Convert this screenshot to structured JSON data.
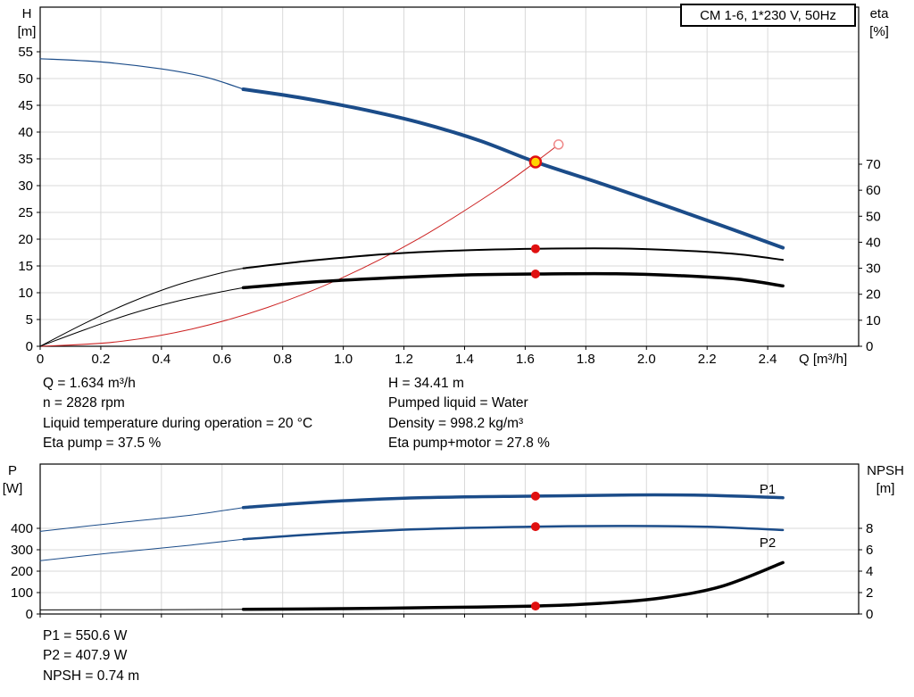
{
  "title_box": "CM 1-6, 1*230 V, 50Hz",
  "operating_point": {
    "left": [
      "Q = 1.634 m³/h",
      "n = 2828 rpm",
      "Liquid temperature during operation = 20 °C",
      "Eta pump = 37.5 %"
    ],
    "right": [
      "H = 34.41 m",
      "Pumped liquid = Water",
      "Density = 998.2 kg/m³",
      "Eta pump+motor = 27.8 %"
    ]
  },
  "power_results": [
    "P1 = 550.6 W",
    "P2 = 407.9 W",
    "NPSH = 0.74 m"
  ],
  "colors": {
    "curve_blue": "#1b4c89",
    "curve_red": "#cc2222",
    "marker_red": "#e01010",
    "duty_yellow": "#ffd400",
    "open_ring_red": "#ef8a8a",
    "black": "#000000",
    "grid": "#d9d9d9"
  },
  "chart_data": [
    {
      "type": "line",
      "name": "hq-eta-chart",
      "title": "CM 1-6, 1*230 V, 50Hz",
      "x_axis": {
        "label": "Q [m³/h]",
        "min": 0,
        "max": 2.7,
        "tick_values": [
          0,
          0.2,
          0.4,
          0.6,
          0.8,
          1.0,
          1.2,
          1.4,
          1.6,
          1.8,
          2.0,
          2.2,
          2.4
        ],
        "tick_labels": [
          "0",
          "0.2",
          "0.4",
          "0.6",
          "0.8",
          "1.0",
          "1.2",
          "1.4",
          "1.6",
          "1.8",
          "2.0",
          "2.2",
          "2.4"
        ]
      },
      "y_left": {
        "title_lines": [
          "H",
          "[m]"
        ],
        "min": 0,
        "max": 63,
        "tick_values": [
          0,
          5,
          10,
          15,
          20,
          25,
          30,
          35,
          40,
          45,
          50,
          55
        ],
        "tick_labels": [
          "0",
          "5",
          "10",
          "15",
          "20",
          "25",
          "30",
          "35",
          "40",
          "45",
          "50",
          "55"
        ]
      },
      "y_right": {
        "title_lines": [
          "eta",
          "[%]"
        ],
        "min": 0,
        "max": 70,
        "tick_values": [
          0,
          10,
          20,
          30,
          40,
          50,
          60,
          70
        ],
        "tick_labels": [
          "0",
          "10",
          "20",
          "30",
          "40",
          "50",
          "60",
          "70"
        ]
      },
      "series": [
        {
          "id": "hq-lead",
          "name": "H-Q curve (lead-in)",
          "axis": "left",
          "color": "#1b4c89",
          "width": 1.2,
          "points": [
            [
              0,
              53.7
            ],
            [
              0.2,
              53.1
            ],
            [
              0.4,
              51.8
            ],
            [
              0.55,
              50.2
            ],
            [
              0.67,
              48.0
            ]
          ]
        },
        {
          "id": "hq",
          "name": "H-Q curve",
          "axis": "left",
          "color": "#1b4c89",
          "width": 4,
          "points": [
            [
              0.67,
              48.0
            ],
            [
              0.85,
              46.5
            ],
            [
              1.05,
              44.4
            ],
            [
              1.25,
              41.8
            ],
            [
              1.45,
              38.4
            ],
            [
              1.634,
              34.41
            ],
            [
              1.85,
              30.4
            ],
            [
              2.05,
              26.5
            ],
            [
              2.25,
              22.5
            ],
            [
              2.45,
              18.4
            ]
          ]
        },
        {
          "id": "system",
          "name": "System curve",
          "axis": "left",
          "color": "#cc2222",
          "width": 1,
          "points": [
            [
              0,
              0
            ],
            [
              0.25,
              0.81
            ],
            [
              0.5,
              3.22
            ],
            [
              0.75,
              7.25
            ],
            [
              1.0,
              12.89
            ],
            [
              1.25,
              20.14
            ],
            [
              1.5,
              29.0
            ],
            [
              1.634,
              34.41
            ],
            [
              1.71,
              37.68
            ]
          ]
        },
        {
          "id": "eta-pump-lead",
          "name": "Eta pump (lead-in)",
          "axis": "right",
          "color": "#000000",
          "width": 1,
          "points": [
            [
              0,
              0
            ],
            [
              0.15,
              9
            ],
            [
              0.3,
              17
            ],
            [
              0.45,
              23.5
            ],
            [
              0.6,
              28.3
            ],
            [
              0.67,
              30
            ]
          ]
        },
        {
          "id": "eta-pump",
          "name": "Eta pump",
          "axis": "right",
          "color": "#000000",
          "width": 2,
          "points": [
            [
              0.67,
              30
            ],
            [
              0.9,
              33
            ],
            [
              1.15,
              35.5
            ],
            [
              1.4,
              36.9
            ],
            [
              1.634,
              37.5
            ],
            [
              1.9,
              37.6
            ],
            [
              2.1,
              36.9
            ],
            [
              2.3,
              35.4
            ],
            [
              2.45,
              33.2
            ]
          ]
        },
        {
          "id": "eta-motor-lead",
          "name": "Eta pump+motor (lead-in)",
          "axis": "right",
          "color": "#000000",
          "width": 1,
          "points": [
            [
              0,
              0
            ],
            [
              0.15,
              6.5
            ],
            [
              0.3,
              12.5
            ],
            [
              0.45,
              17.3
            ],
            [
              0.6,
              21
            ],
            [
              0.67,
              22.5
            ]
          ]
        },
        {
          "id": "eta-pump-motor",
          "name": "Eta pump+motor",
          "axis": "right",
          "color": "#000000",
          "width": 3.5,
          "points": [
            [
              0.67,
              22.5
            ],
            [
              0.9,
              24.7
            ],
            [
              1.15,
              26.3
            ],
            [
              1.4,
              27.4
            ],
            [
              1.634,
              27.8
            ],
            [
              1.9,
              27.9
            ],
            [
              2.1,
              27.2
            ],
            [
              2.3,
              25.8
            ],
            [
              2.45,
              23.2
            ]
          ]
        }
      ],
      "markers": [
        {
          "x": 1.71,
          "y": 37.68,
          "axis": "left",
          "style": "open-red",
          "name": "system-curve-end-marker"
        },
        {
          "x": 1.634,
          "y": 34.41,
          "axis": "left",
          "style": "duty",
          "name": "duty-point-marker"
        },
        {
          "x": 1.634,
          "y": 37.5,
          "axis": "right",
          "style": "red-dot",
          "name": "eta-pump-duty-marker"
        },
        {
          "x": 1.634,
          "y": 27.8,
          "axis": "right",
          "style": "red-dot",
          "name": "eta-motor-duty-marker"
        }
      ],
      "annotations": []
    },
    {
      "type": "line",
      "name": "power-npsh-chart",
      "title": "",
      "x_axis": {
        "label": "",
        "min": 0,
        "max": 2.7,
        "tick_values": [
          0,
          0.2,
          0.4,
          0.6,
          0.8,
          1.0,
          1.2,
          1.4,
          1.6,
          1.8,
          2.0,
          2.2,
          2.4
        ],
        "tick_labels": []
      },
      "y_left": {
        "title_lines": [
          "P",
          "[W]"
        ],
        "min": 0,
        "max": 700,
        "tick_values": [
          0,
          100,
          200,
          300,
          400
        ],
        "tick_labels": [
          "0",
          "100",
          "200",
          "300",
          "400"
        ]
      },
      "y_right": {
        "title_lines": [
          "NPSH",
          "[m]"
        ],
        "min": 0,
        "max": 14,
        "tick_values": [
          0,
          2,
          4,
          6,
          8
        ],
        "tick_labels": [
          "0",
          "2",
          "4",
          "6",
          "8"
        ]
      },
      "series": [
        {
          "id": "p1-lead",
          "name": "P1 (lead-in)",
          "axis": "left",
          "color": "#1b4c89",
          "width": 1,
          "points": [
            [
              0,
              386
            ],
            [
              0.25,
              425
            ],
            [
              0.5,
              462
            ],
            [
              0.67,
              497
            ]
          ]
        },
        {
          "id": "p1",
          "name": "P1",
          "axis": "left",
          "color": "#1b4c89",
          "width": 3.5,
          "points": [
            [
              0.67,
              497
            ],
            [
              0.95,
              525
            ],
            [
              1.25,
              543
            ],
            [
              1.634,
              550.6
            ],
            [
              1.95,
              556
            ],
            [
              2.2,
              554
            ],
            [
              2.45,
              543
            ]
          ]
        },
        {
          "id": "p2-lead",
          "name": "P2 (lead-in)",
          "axis": "left",
          "color": "#1b4c89",
          "width": 1,
          "points": [
            [
              0,
              249
            ],
            [
              0.25,
              287
            ],
            [
              0.5,
              322
            ],
            [
              0.67,
              349
            ]
          ]
        },
        {
          "id": "p2",
          "name": "P2",
          "axis": "left",
          "color": "#1b4c89",
          "width": 2.5,
          "points": [
            [
              0.67,
              349
            ],
            [
              0.95,
              376
            ],
            [
              1.25,
              396
            ],
            [
              1.634,
              407.9
            ],
            [
              1.95,
              411
            ],
            [
              2.2,
              407
            ],
            [
              2.45,
              392
            ]
          ]
        },
        {
          "id": "npsh-lead",
          "name": "NPSH (lead-in)",
          "axis": "right",
          "color": "#000000",
          "width": 1,
          "points": [
            [
              0,
              0.38
            ],
            [
              0.35,
              0.4
            ],
            [
              0.67,
              0.43
            ]
          ]
        },
        {
          "id": "npsh",
          "name": "NPSH",
          "axis": "right",
          "color": "#000000",
          "width": 3.5,
          "points": [
            [
              0.67,
              0.43
            ],
            [
              1.0,
              0.5
            ],
            [
              1.3,
              0.6
            ],
            [
              1.634,
              0.74
            ],
            [
              1.85,
              1.0
            ],
            [
              2.05,
              1.5
            ],
            [
              2.25,
              2.6
            ],
            [
              2.45,
              4.8
            ]
          ]
        }
      ],
      "markers": [
        {
          "x": 1.634,
          "y": 550.6,
          "axis": "left",
          "style": "red-dot",
          "name": "p1-duty-marker"
        },
        {
          "x": 1.634,
          "y": 407.9,
          "axis": "left",
          "style": "red-dot",
          "name": "p2-duty-marker"
        },
        {
          "x": 1.634,
          "y": 0.74,
          "axis": "right",
          "style": "red-dot",
          "name": "npsh-duty-marker"
        }
      ],
      "annotations": [
        {
          "x": 2.4,
          "y": 583,
          "axis": "left",
          "text": "P1",
          "color": "#1b4c89"
        },
        {
          "x": 2.4,
          "y": 333,
          "axis": "left",
          "text": "P2",
          "color": "#1b4c89"
        }
      ]
    }
  ]
}
